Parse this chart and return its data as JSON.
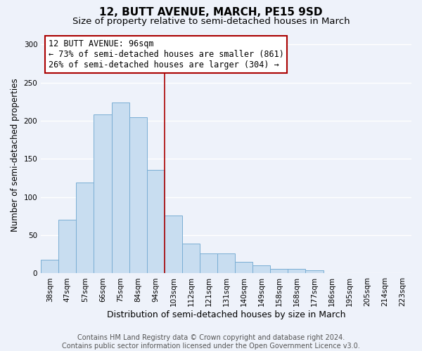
{
  "title": "12, BUTT AVENUE, MARCH, PE15 9SD",
  "subtitle": "Size of property relative to semi-detached houses in March",
  "xlabel": "Distribution of semi-detached houses by size in March",
  "ylabel": "Number of semi-detached properties",
  "categories": [
    "38sqm",
    "47sqm",
    "57sqm",
    "66sqm",
    "75sqm",
    "84sqm",
    "94sqm",
    "103sqm",
    "112sqm",
    "121sqm",
    "131sqm",
    "140sqm",
    "149sqm",
    "158sqm",
    "168sqm",
    "177sqm",
    "186sqm",
    "195sqm",
    "205sqm",
    "214sqm",
    "223sqm"
  ],
  "values": [
    18,
    70,
    119,
    208,
    224,
    205,
    136,
    76,
    39,
    26,
    26,
    15,
    11,
    6,
    6,
    4,
    0,
    0,
    0,
    0,
    0
  ],
  "bar_color": "#c8ddf0",
  "bar_edge_color": "#7aaed4",
  "property_line_idx": 6,
  "property_label": "12 BUTT AVENUE: 96sqm",
  "annotation_line1": "← 73% of semi-detached houses are smaller (861)",
  "annotation_line2": "26% of semi-detached houses are larger (304) →",
  "vline_color": "#aa0000",
  "annotation_box_edge": "#aa0000",
  "ylim": [
    0,
    310
  ],
  "yticks": [
    0,
    50,
    100,
    150,
    200,
    250,
    300
  ],
  "footer1": "Contains HM Land Registry data © Crown copyright and database right 2024.",
  "footer2": "Contains public sector information licensed under the Open Government Licence v3.0.",
  "background_color": "#eef2fa",
  "grid_color": "#ffffff",
  "title_fontsize": 11,
  "subtitle_fontsize": 9.5,
  "xlabel_fontsize": 9,
  "ylabel_fontsize": 8.5,
  "tick_fontsize": 7.5,
  "annotation_fontsize": 8.5,
  "footer_fontsize": 7
}
